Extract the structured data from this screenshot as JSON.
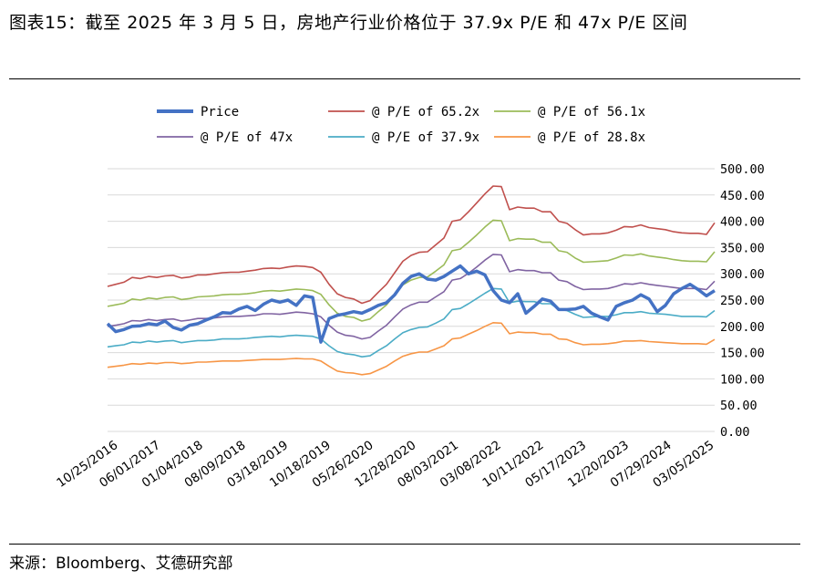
{
  "title": "图表15：截至 2025 年 3 月 5 日，房地产行业价格位于 37.9x P/E 和 47x P/E 区间",
  "source": "来源：Bloomberg、艾德研究部",
  "chart_data": {
    "type": "line",
    "title": "",
    "xlabel": "",
    "ylabel": "",
    "ylim": [
      0,
      500
    ],
    "y_ticks": [
      "0.00",
      "50.00",
      "100.00",
      "150.00",
      "200.00",
      "250.00",
      "300.00",
      "350.00",
      "400.00",
      "450.00",
      "500.00"
    ],
    "x_ticks": [
      "10/25/2016",
      "06/01/2017",
      "01/04/2018",
      "08/09/2018",
      "03/18/2019",
      "10/18/2019",
      "05/26/2020",
      "12/28/2020",
      "08/03/2021",
      "03/08/2022",
      "10/11/2022",
      "05/17/2023",
      "12/20/2023",
      "07/29/2024",
      "03/05/2025"
    ],
    "grid": true,
    "legend": "top",
    "series": [
      {
        "name": "Price",
        "color": "#4472c4",
        "values": [
          205,
          190,
          194,
          200,
          201,
          205,
          203,
          210,
          198,
          193,
          202,
          205,
          212,
          218,
          226,
          225,
          233,
          238,
          230,
          242,
          250,
          246,
          250,
          240,
          258,
          255,
          170,
          215,
          221,
          224,
          228,
          225,
          232,
          240,
          245,
          260,
          282,
          295,
          300,
          290,
          288,
          295,
          305,
          315,
          300,
          305,
          298,
          268,
          250,
          245,
          262,
          225,
          238,
          252,
          248,
          232,
          232,
          233,
          238,
          225,
          218,
          212,
          238,
          245,
          250,
          260,
          252,
          228,
          240,
          262,
          272,
          280,
          270,
          258,
          268
        ]
      },
      {
        "name": "@ P/E of 65.2x",
        "color": "#c0504d",
        "values": [
          276,
          280,
          284,
          293,
          291,
          295,
          293,
          296,
          297,
          292,
          294,
          298,
          298,
          300,
          302,
          303,
          303,
          305,
          307,
          310,
          311,
          310,
          313,
          315,
          314,
          312,
          303,
          280,
          262,
          255,
          252,
          244,
          249,
          265,
          280,
          302,
          324,
          335,
          341,
          342,
          355,
          368,
          400,
          403,
          418,
          435,
          452,
          467,
          466,
          422,
          427,
          425,
          425,
          418,
          418,
          400,
          396,
          384,
          374,
          376,
          376,
          378,
          383,
          390,
          389,
          393,
          388,
          386,
          384,
          380,
          378,
          377,
          377,
          375,
          397
        ]
      },
      {
        "name": "@ P/E of 56.1x",
        "color": "#9bbb59",
        "values": [
          238,
          241,
          244,
          252,
          250,
          254,
          252,
          255,
          256,
          251,
          253,
          256,
          257,
          258,
          260,
          261,
          261,
          262,
          264,
          267,
          268,
          267,
          269,
          271,
          270,
          268,
          261,
          241,
          225,
          219,
          217,
          210,
          214,
          228,
          241,
          260,
          279,
          288,
          293,
          294,
          305,
          317,
          344,
          347,
          360,
          374,
          389,
          402,
          401,
          363,
          367,
          366,
          366,
          360,
          360,
          344,
          341,
          330,
          322,
          323,
          324,
          325,
          330,
          336,
          335,
          338,
          334,
          332,
          330,
          327,
          325,
          324,
          324,
          323,
          342
        ]
      },
      {
        "name": "@ P/E of 47x",
        "color": "#8064a2",
        "values": [
          200,
          202,
          205,
          211,
          210,
          213,
          211,
          213,
          214,
          210,
          212,
          215,
          215,
          216,
          218,
          219,
          219,
          220,
          221,
          224,
          224,
          223,
          225,
          227,
          226,
          224,
          218,
          202,
          189,
          183,
          181,
          176,
          179,
          191,
          202,
          218,
          233,
          241,
          246,
          246,
          256,
          266,
          288,
          291,
          301,
          313,
          326,
          337,
          336,
          304,
          308,
          306,
          306,
          302,
          302,
          288,
          285,
          276,
          270,
          271,
          271,
          272,
          276,
          281,
          280,
          283,
          280,
          278,
          276,
          274,
          272,
          272,
          272,
          270,
          286
        ]
      },
      {
        "name": "@ P/E of 37.9x",
        "color": "#4bacc6",
        "values": [
          161,
          163,
          165,
          170,
          169,
          172,
          170,
          172,
          173,
          169,
          171,
          173,
          173,
          174,
          176,
          176,
          176,
          177,
          179,
          180,
          181,
          180,
          182,
          183,
          182,
          181,
          176,
          163,
          152,
          148,
          146,
          142,
          144,
          154,
          163,
          176,
          188,
          194,
          198,
          199,
          206,
          214,
          232,
          234,
          243,
          253,
          263,
          272,
          271,
          245,
          248,
          247,
          247,
          243,
          243,
          232,
          230,
          223,
          217,
          218,
          219,
          219,
          222,
          226,
          226,
          228,
          225,
          224,
          223,
          221,
          219,
          219,
          219,
          218,
          230
        ]
      },
      {
        "name": "@ P/E of 28.8x",
        "color": "#f79646",
        "values": [
          122,
          124,
          126,
          129,
          128,
          130,
          129,
          131,
          131,
          129,
          130,
          132,
          132,
          133,
          134,
          134,
          134,
          135,
          136,
          137,
          137,
          137,
          138,
          139,
          138,
          138,
          134,
          124,
          115,
          112,
          111,
          108,
          110,
          117,
          124,
          134,
          143,
          148,
          151,
          151,
          157,
          163,
          176,
          178,
          185,
          192,
          200,
          207,
          206,
          186,
          189,
          188,
          188,
          185,
          185,
          176,
          175,
          169,
          165,
          166,
          166,
          167,
          169,
          172,
          172,
          173,
          171,
          170,
          169,
          168,
          167,
          167,
          167,
          166,
          175
        ]
      }
    ]
  }
}
